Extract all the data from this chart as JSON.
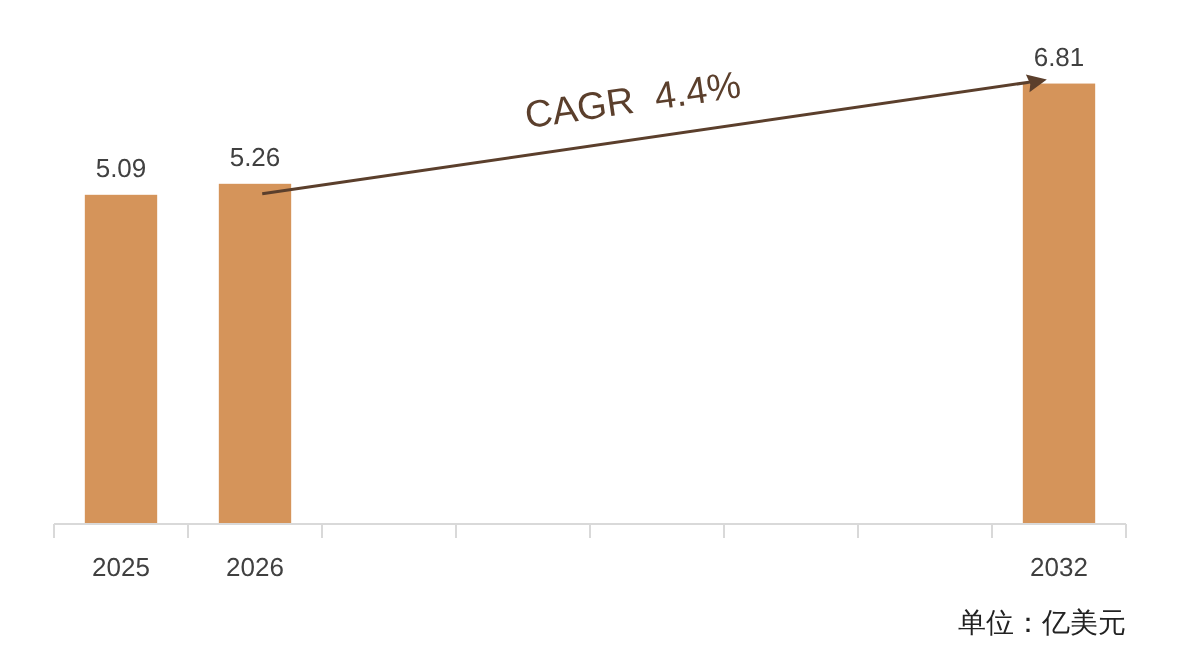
{
  "chart_data": {
    "type": "bar",
    "categories": [
      "2025",
      "2026",
      null,
      null,
      null,
      null,
      null,
      "2032"
    ],
    "values": [
      5.09,
      5.26,
      null,
      null,
      null,
      null,
      null,
      6.81
    ],
    "color": "#d5945a",
    "data_labels": true,
    "annotations": [
      "CAGR  4.4%",
      "单位：亿美元"
    ]
  }
}
